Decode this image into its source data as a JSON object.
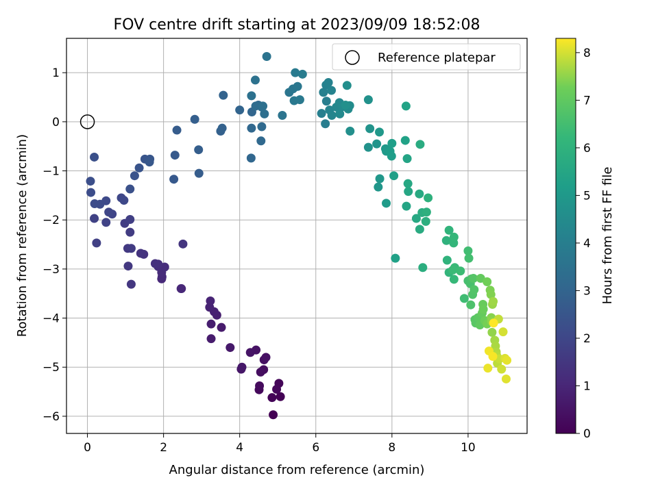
{
  "chart_data": {
    "type": "scatter",
    "title": "FOV centre drift starting at 2023/09/09 18:52:08",
    "xlabel": "Angular distance from reference (arcmin)",
    "ylabel": "Rotation from reference (arcmin)",
    "xlim": [
      -0.55,
      11.55
    ],
    "ylim": [
      -6.35,
      1.7
    ],
    "xticks": [
      0,
      2,
      4,
      6,
      8,
      10
    ],
    "yticks": [
      -6,
      -5,
      -4,
      -3,
      -2,
      -1,
      0,
      1
    ],
    "grid": true,
    "legend": {
      "position": "top-right",
      "entries": [
        "Reference platepar"
      ]
    },
    "reference_point": {
      "label": "Reference platepar",
      "x": 0,
      "y": 0
    },
    "colorbar": {
      "label": "Hours from first FF file",
      "colormap": "viridis",
      "range": [
        0,
        8.3
      ],
      "ticks": [
        0,
        1,
        2,
        3,
        4,
        5,
        6,
        7,
        8
      ]
    },
    "series": [
      {
        "values": [
          [
            4.88,
            -5.97
          ],
          [
            5.07,
            -5.6
          ],
          [
            4.85,
            -5.62
          ],
          [
            5.03,
            -5.33
          ],
          [
            4.97,
            -5.45
          ],
          [
            4.51,
            -5.46
          ],
          [
            4.52,
            -5.38
          ],
          [
            4.63,
            -5.05
          ],
          [
            4.55,
            -5.1
          ],
          [
            4.64,
            -4.85
          ],
          [
            4.69,
            -4.8
          ],
          [
            4.43,
            -4.65
          ],
          [
            4.28,
            -4.7
          ],
          [
            4.04,
            -5.04
          ],
          [
            4.06,
            -5.0
          ],
          [
            3.75,
            -4.6
          ],
          [
            3.52,
            -4.19
          ],
          [
            3.25,
            -4.42
          ],
          [
            3.25,
            -4.12
          ],
          [
            3.4,
            -3.94
          ],
          [
            3.33,
            -3.87
          ],
          [
            3.21,
            -3.78
          ],
          [
            3.23,
            -3.65
          ],
          [
            2.47,
            -3.4
          ],
          [
            2.46,
            -3.4
          ],
          [
            1.95,
            -3.2
          ],
          [
            1.96,
            -3.16
          ],
          [
            1.95,
            -3.07
          ],
          [
            2.03,
            -2.96
          ],
          [
            1.86,
            -2.95
          ],
          [
            1.86,
            -2.9
          ],
          [
            1.78,
            -2.89
          ],
          [
            1.48,
            -2.7
          ],
          [
            1.4,
            -2.68
          ],
          [
            2.51,
            -2.49
          ],
          [
            1.15,
            -3.31
          ],
          [
            1.07,
            -2.94
          ],
          [
            1.06,
            -2.58
          ],
          [
            1.15,
            -2.58
          ],
          [
            1.12,
            -2.25
          ],
          [
            0.98,
            -2.07
          ],
          [
            1.12,
            -1.99
          ],
          [
            0.24,
            -2.47
          ],
          [
            0.18,
            -1.97
          ],
          [
            0.49,
            -2.05
          ],
          [
            0.65,
            -1.88
          ],
          [
            0.56,
            -1.84
          ],
          [
            0.89,
            -1.55
          ],
          [
            0.96,
            -1.6
          ],
          [
            0.49,
            -1.61
          ],
          [
            0.33,
            -1.68
          ],
          [
            0.19,
            -1.67
          ],
          [
            0.09,
            -1.44
          ],
          [
            0.08,
            -1.21
          ],
          [
            0.18,
            -0.72
          ],
          [
            1.12,
            -1.37
          ],
          [
            1.24,
            -1.1
          ],
          [
            1.36,
            -0.94
          ],
          [
            1.51,
            -0.76
          ],
          [
            1.64,
            -0.76
          ],
          [
            1.63,
            -0.82
          ],
          [
            2.27,
            -1.17
          ],
          [
            2.3,
            -0.68
          ],
          [
            2.35,
            -0.17
          ],
          [
            2.93,
            -1.05
          ],
          [
            2.92,
            -0.57
          ],
          [
            2.82,
            0.05
          ],
          [
            3.5,
            -0.19
          ],
          [
            3.54,
            -0.13
          ],
          [
            3.57,
            0.54
          ],
          [
            4.0,
            0.24
          ],
          [
            4.32,
            0.2
          ],
          [
            4.3,
            -0.74
          ],
          [
            4.31,
            -0.13
          ],
          [
            4.56,
            -0.39
          ],
          [
            4.58,
            -0.1
          ],
          [
            4.49,
            0.34
          ],
          [
            4.42,
            0.32
          ],
          [
            4.58,
            0.3
          ],
          [
            4.65,
            0.16
          ],
          [
            4.61,
            0.32
          ],
          [
            4.31,
            0.53
          ],
          [
            4.41,
            0.85
          ],
          [
            4.71,
            1.33
          ],
          [
            5.12,
            0.13
          ],
          [
            5.3,
            0.6
          ],
          [
            5.4,
            0.67
          ],
          [
            5.52,
            0.72
          ],
          [
            5.43,
            0.43
          ],
          [
            5.58,
            0.45
          ],
          [
            5.46,
            1.0
          ],
          [
            5.65,
            0.97
          ],
          [
            6.25,
            -0.04
          ],
          [
            6.28,
            0.42
          ],
          [
            6.15,
            0.17
          ],
          [
            6.2,
            0.6
          ],
          [
            6.27,
            0.75
          ],
          [
            6.33,
            0.8
          ],
          [
            6.41,
            0.64
          ],
          [
            6.36,
            0.24
          ],
          [
            6.42,
            0.13
          ],
          [
            6.54,
            0.3
          ],
          [
            6.62,
            0.39
          ],
          [
            6.63,
            0.16
          ],
          [
            6.71,
            0.31
          ],
          [
            6.85,
            0.26
          ],
          [
            6.89,
            0.33
          ],
          [
            6.82,
            0.74
          ],
          [
            6.9,
            -0.19
          ],
          [
            6.78,
            0.34
          ],
          [
            7.38,
            0.45
          ],
          [
            7.38,
            -0.52
          ],
          [
            7.42,
            -0.14
          ],
          [
            7.6,
            -0.45
          ],
          [
            7.64,
            -1.33
          ],
          [
            7.68,
            -1.16
          ],
          [
            7.67,
            -0.21
          ],
          [
            7.83,
            -0.55
          ],
          [
            7.85,
            -0.6
          ],
          [
            7.85,
            -1.66
          ],
          [
            7.95,
            -0.6
          ],
          [
            7.99,
            -0.7
          ],
          [
            8.0,
            -0.44
          ],
          [
            8.05,
            -1.1
          ],
          [
            8.09,
            -2.78
          ],
          [
            8.35,
            -0.38
          ],
          [
            8.37,
            0.32
          ],
          [
            8.4,
            -0.75
          ],
          [
            8.38,
            -1.72
          ],
          [
            8.43,
            -1.42
          ],
          [
            8.42,
            -1.26
          ],
          [
            8.64,
            -1.97
          ],
          [
            8.72,
            -1.47
          ],
          [
            8.73,
            -2.19
          ],
          [
            8.74,
            -0.46
          ],
          [
            8.79,
            -1.85
          ],
          [
            8.81,
            -2.97
          ],
          [
            8.89,
            -2.03
          ],
          [
            8.91,
            -1.84
          ],
          [
            8.95,
            -1.55
          ],
          [
            9.43,
            -2.42
          ],
          [
            9.45,
            -2.82
          ],
          [
            9.5,
            -2.21
          ],
          [
            9.5,
            -3.07
          ],
          [
            9.62,
            -2.47
          ],
          [
            9.63,
            -2.35
          ],
          [
            9.63,
            -3.21
          ],
          [
            9.65,
            -2.97
          ],
          [
            9.6,
            -3.02
          ],
          [
            9.8,
            -3.04
          ],
          [
            9.9,
            -3.6
          ],
          [
            10.0,
            -2.63
          ],
          [
            10.02,
            -2.78
          ],
          [
            10.0,
            -3.24
          ],
          [
            10.06,
            -3.3
          ],
          [
            10.09,
            -3.2
          ],
          [
            10.07,
            -3.73
          ],
          [
            10.12,
            -3.52
          ],
          [
            10.16,
            -3.42
          ],
          [
            10.14,
            -3.19
          ],
          [
            10.18,
            -4.03
          ],
          [
            10.2,
            -4.1
          ],
          [
            10.26,
            -3.99
          ],
          [
            10.3,
            -4.0
          ],
          [
            10.31,
            -4.14
          ],
          [
            10.33,
            -3.19
          ],
          [
            10.37,
            -3.9
          ],
          [
            10.39,
            -3.72
          ],
          [
            10.4,
            -3.82
          ],
          [
            10.44,
            -4.05
          ],
          [
            10.5,
            -3.26
          ],
          [
            10.5,
            -4.12
          ],
          [
            10.58,
            -3.43
          ],
          [
            10.6,
            -3.52
          ],
          [
            10.61,
            -3.99
          ],
          [
            10.62,
            -4.07
          ],
          [
            10.63,
            -4.29
          ],
          [
            10.64,
            -3.72
          ],
          [
            10.66,
            -3.66
          ],
          [
            10.7,
            -4.45
          ],
          [
            10.72,
            -4.57
          ],
          [
            10.74,
            -4.69
          ],
          [
            10.75,
            -4.76
          ],
          [
            10.77,
            -4.92
          ],
          [
            10.8,
            -4.02
          ],
          [
            10.82,
            -4.83
          ],
          [
            10.88,
            -5.04
          ],
          [
            10.92,
            -4.28
          ],
          [
            10.97,
            -4.82
          ],
          [
            11.0,
            -5.24
          ],
          [
            11.02,
            -4.86
          ],
          [
            10.52,
            -5.02
          ],
          [
            10.55,
            -4.67
          ],
          [
            10.65,
            -4.78
          ],
          [
            10.67,
            -4.1
          ]
        ]
      }
    ]
  }
}
